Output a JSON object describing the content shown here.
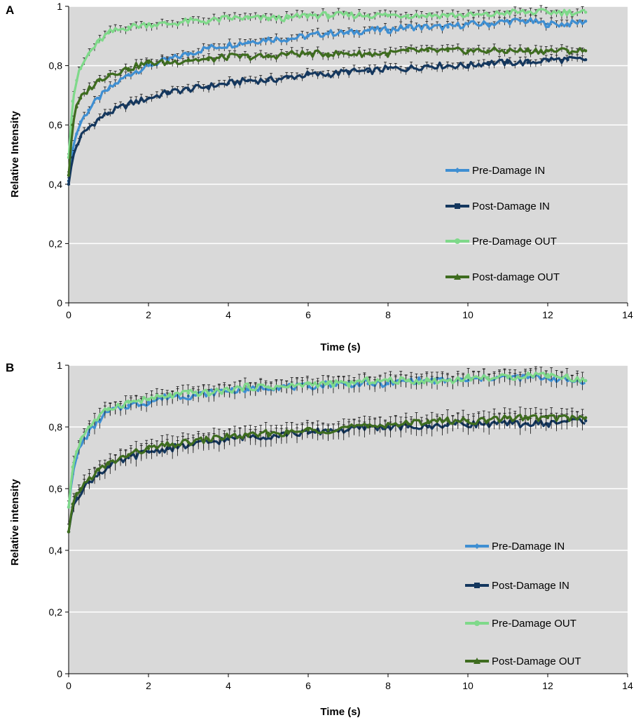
{
  "chart_data": [
    {
      "panel": "A",
      "type": "line",
      "xlabel": "Time (s)",
      "ylabel": "Relative Intensity",
      "xlim": [
        0,
        14
      ],
      "ylim": [
        0,
        1
      ],
      "x_ticks": [
        "0",
        "2",
        "4",
        "6",
        "8",
        "10",
        "12",
        "14"
      ],
      "y_ticks": [
        "0",
        "0,2",
        "0,4",
        "0,6",
        "0,8",
        "1"
      ],
      "grid": "horizontal",
      "plot_background": "#d9d9d9",
      "legend_position": "bottom-right",
      "series": [
        {
          "name": "Pre-Damage IN",
          "color": "#3f8fd2",
          "marker": "diamond",
          "x": [
            0,
            0.1,
            0.2,
            0.3,
            0.5,
            0.75,
            1,
            1.5,
            2,
            2.5,
            3,
            3.5,
            4,
            4.5,
            5,
            5.5,
            6,
            6.5,
            7,
            7.5,
            8,
            8.5,
            9,
            9.5,
            10,
            10.5,
            11,
            11.5,
            12,
            12.5,
            12.95
          ],
          "y": [
            0.41,
            0.52,
            0.57,
            0.61,
            0.65,
            0.69,
            0.72,
            0.77,
            0.8,
            0.82,
            0.84,
            0.86,
            0.87,
            0.88,
            0.89,
            0.89,
            0.9,
            0.91,
            0.91,
            0.92,
            0.92,
            0.93,
            0.93,
            0.93,
            0.94,
            0.94,
            0.95,
            0.95,
            0.94,
            0.94,
            0.95
          ],
          "error": 0.012
        },
        {
          "name": "Post-Damage IN",
          "color": "#14375e",
          "marker": "square",
          "x": [
            0,
            0.1,
            0.2,
            0.3,
            0.5,
            0.75,
            1,
            1.5,
            2,
            2.5,
            3,
            3.5,
            4,
            4.5,
            5,
            5.5,
            6,
            6.5,
            7,
            7.5,
            8,
            8.5,
            9,
            9.5,
            10,
            10.5,
            11,
            11.5,
            12,
            12.5,
            12.95
          ],
          "y": [
            0.4,
            0.49,
            0.53,
            0.56,
            0.59,
            0.62,
            0.64,
            0.67,
            0.69,
            0.71,
            0.72,
            0.73,
            0.74,
            0.75,
            0.75,
            0.76,
            0.77,
            0.77,
            0.78,
            0.78,
            0.79,
            0.79,
            0.8,
            0.8,
            0.8,
            0.81,
            0.81,
            0.81,
            0.82,
            0.82,
            0.82
          ],
          "error": 0.012
        },
        {
          "name": "Pre-Damage OUT",
          "color": "#7fd98a",
          "marker": "circle",
          "x": [
            0,
            0.1,
            0.2,
            0.3,
            0.5,
            0.75,
            1,
            1.5,
            2,
            2.5,
            3,
            3.5,
            4,
            4.5,
            5,
            5.5,
            6,
            6.5,
            7,
            7.5,
            8,
            8.5,
            9,
            9.5,
            10,
            10.5,
            11,
            11.5,
            12,
            12.5,
            12.95
          ],
          "y": [
            0.49,
            0.68,
            0.75,
            0.79,
            0.84,
            0.88,
            0.91,
            0.93,
            0.94,
            0.94,
            0.95,
            0.95,
            0.96,
            0.96,
            0.96,
            0.96,
            0.97,
            0.97,
            0.97,
            0.97,
            0.97,
            0.97,
            0.97,
            0.97,
            0.97,
            0.97,
            0.98,
            0.98,
            0.98,
            0.98,
            0.98
          ],
          "error": 0.012
        },
        {
          "name": "Post-damage OUT",
          "color": "#3e6c1f",
          "marker": "triangle",
          "x": [
            0,
            0.1,
            0.2,
            0.3,
            0.5,
            0.75,
            1,
            1.5,
            2,
            2.5,
            3,
            3.5,
            4,
            4.5,
            5,
            5.5,
            6,
            6.5,
            7,
            7.5,
            8,
            8.5,
            9,
            9.5,
            10,
            10.5,
            11,
            11.5,
            12,
            12.5,
            12.95
          ],
          "y": [
            0.43,
            0.6,
            0.66,
            0.69,
            0.72,
            0.75,
            0.77,
            0.79,
            0.81,
            0.81,
            0.82,
            0.82,
            0.83,
            0.83,
            0.83,
            0.84,
            0.84,
            0.84,
            0.84,
            0.84,
            0.84,
            0.85,
            0.85,
            0.85,
            0.85,
            0.85,
            0.85,
            0.85,
            0.85,
            0.85,
            0.85
          ],
          "error": 0.012
        }
      ]
    },
    {
      "panel": "B",
      "type": "line",
      "xlabel": "Time (s)",
      "ylabel": "Relative intensity",
      "xlim": [
        0,
        14
      ],
      "ylim": [
        0,
        1
      ],
      "x_ticks": [
        "0",
        "2",
        "4",
        "6",
        "8",
        "10",
        "12",
        "14"
      ],
      "y_ticks": [
        "0",
        "0,2",
        "0,4",
        "0,6",
        "0,8",
        "1"
      ],
      "grid": "horizontal",
      "plot_background": "#d9d9d9",
      "legend_position": "bottom-right",
      "series": [
        {
          "name": "Pre-Damage IN",
          "color": "#3f8fd2",
          "marker": "diamond",
          "x": [
            0,
            0.1,
            0.2,
            0.3,
            0.5,
            0.75,
            1,
            1.5,
            2,
            2.5,
            3,
            3.5,
            4,
            4.5,
            5,
            5.5,
            6,
            6.5,
            7,
            7.5,
            8,
            8.5,
            9,
            9.5,
            10,
            10.5,
            11,
            11.5,
            12,
            12.5,
            12.95
          ],
          "y": [
            0.54,
            0.65,
            0.7,
            0.74,
            0.78,
            0.82,
            0.85,
            0.87,
            0.88,
            0.9,
            0.9,
            0.91,
            0.92,
            0.92,
            0.93,
            0.93,
            0.93,
            0.94,
            0.94,
            0.94,
            0.94,
            0.95,
            0.95,
            0.95,
            0.95,
            0.96,
            0.96,
            0.96,
            0.96,
            0.95,
            0.95
          ],
          "error": 0.02
        },
        {
          "name": "Post-Damage IN",
          "color": "#14375e",
          "marker": "square",
          "x": [
            0,
            0.1,
            0.2,
            0.3,
            0.5,
            0.75,
            1,
            1.5,
            2,
            2.5,
            3,
            3.5,
            4,
            4.5,
            5,
            5.5,
            6,
            6.5,
            7,
            7.5,
            8,
            8.5,
            9,
            9.5,
            10,
            10.5,
            11,
            11.5,
            12,
            12.5,
            12.95
          ],
          "y": [
            0.46,
            0.54,
            0.57,
            0.59,
            0.62,
            0.65,
            0.67,
            0.7,
            0.72,
            0.73,
            0.74,
            0.75,
            0.76,
            0.77,
            0.77,
            0.78,
            0.78,
            0.79,
            0.79,
            0.8,
            0.8,
            0.8,
            0.8,
            0.81,
            0.81,
            0.81,
            0.81,
            0.81,
            0.81,
            0.82,
            0.82
          ],
          "error": 0.025
        },
        {
          "name": "Pre-Damage OUT",
          "color": "#7fd98a",
          "marker": "circle",
          "x": [
            0,
            0.1,
            0.2,
            0.3,
            0.5,
            0.75,
            1,
            1.5,
            2,
            2.5,
            3,
            3.5,
            4,
            4.5,
            5,
            5.5,
            6,
            6.5,
            7,
            7.5,
            8,
            8.5,
            9,
            9.5,
            10,
            10.5,
            11,
            11.5,
            12,
            12.5,
            12.95
          ],
          "y": [
            0.54,
            0.67,
            0.72,
            0.76,
            0.8,
            0.83,
            0.86,
            0.88,
            0.89,
            0.9,
            0.91,
            0.91,
            0.92,
            0.93,
            0.93,
            0.93,
            0.94,
            0.94,
            0.94,
            0.95,
            0.95,
            0.95,
            0.95,
            0.95,
            0.96,
            0.96,
            0.96,
            0.97,
            0.97,
            0.96,
            0.95
          ],
          "error": 0.02
        },
        {
          "name": "Post-Damage OUT",
          "color": "#3e6c1f",
          "marker": "triangle",
          "x": [
            0,
            0.1,
            0.2,
            0.3,
            0.5,
            0.75,
            1,
            1.5,
            2,
            2.5,
            3,
            3.5,
            4,
            4.5,
            5,
            5.5,
            6,
            6.5,
            7,
            7.5,
            8,
            8.5,
            9,
            9.5,
            10,
            10.5,
            11,
            11.5,
            12,
            12.5,
            12.95
          ],
          "y": [
            0.46,
            0.55,
            0.58,
            0.6,
            0.63,
            0.66,
            0.68,
            0.71,
            0.73,
            0.74,
            0.75,
            0.76,
            0.77,
            0.77,
            0.78,
            0.78,
            0.79,
            0.79,
            0.8,
            0.8,
            0.81,
            0.81,
            0.82,
            0.82,
            0.82,
            0.82,
            0.83,
            0.83,
            0.83,
            0.83,
            0.83
          ],
          "error": 0.025
        }
      ]
    }
  ]
}
